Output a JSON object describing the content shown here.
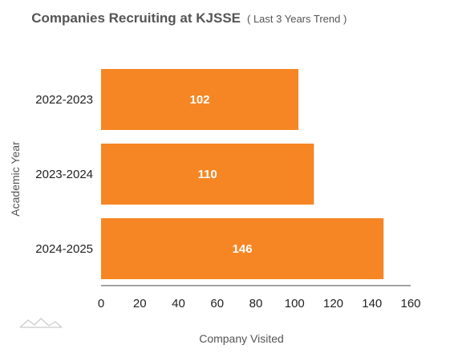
{
  "chart_data": {
    "type": "bar",
    "orientation": "horizontal",
    "title": "Companies Recruiting at KJSSE",
    "subtitle": "( Last 3 Years Trend )",
    "categories": [
      "2022-2023",
      "2023-2024",
      "2024-2025"
    ],
    "values": [
      102,
      110,
      146
    ],
    "data_labels": [
      "102",
      "110",
      "146"
    ],
    "xlabel": "Company Visited",
    "ylabel": "Academic Year",
    "xlim": [
      0,
      160
    ],
    "x_ticks": [
      "0",
      "20",
      "40",
      "60",
      "80",
      "100",
      "120",
      "140",
      "160"
    ],
    "grid": false,
    "bar_color": "#f68623"
  }
}
